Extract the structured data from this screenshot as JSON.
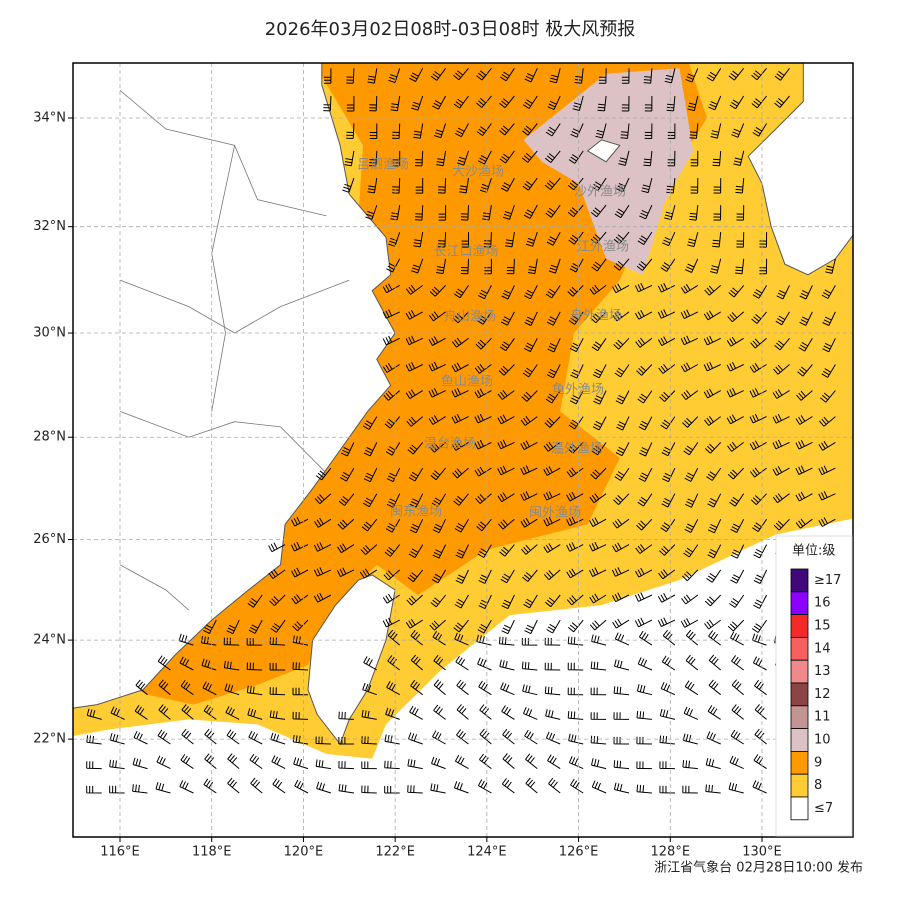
{
  "title": "2026年03月02日08时-03日08时 极大风预报",
  "map": {
    "lon_ticks": [
      {
        "value": 116,
        "label": "116°E"
      },
      {
        "value": 118,
        "label": "118°E"
      },
      {
        "value": 120,
        "label": "120°E"
      },
      {
        "value": 122,
        "label": "122°E"
      },
      {
        "value": 124,
        "label": "124°E"
      },
      {
        "value": 126,
        "label": "126°E"
      },
      {
        "value": 128,
        "label": "128°E"
      },
      {
        "value": 130,
        "label": "130°E"
      }
    ],
    "lat_ticks": [
      {
        "value": 22,
        "label": "22°N"
      },
      {
        "value": 24,
        "label": "24°N"
      },
      {
        "value": 26,
        "label": "26°N"
      },
      {
        "value": 28,
        "label": "28°N"
      },
      {
        "value": 30,
        "label": "30°N"
      },
      {
        "value": 32,
        "label": "32°N"
      },
      {
        "value": 34,
        "label": "34°N"
      }
    ],
    "fishing_grounds": [
      "吕泗渔场",
      "大沙渔场",
      "沙外渔场",
      "长江口渔场",
      "江外渔场",
      "舟山渔场",
      "舟外渔场",
      "鱼山渔场",
      "鱼外渔场",
      "温台渔场",
      "温外渔场",
      "闽东渔场",
      "闽外渔场"
    ]
  },
  "legend": {
    "title": "单位:级",
    "items": [
      {
        "label": "≥17",
        "color": "#40087a"
      },
      {
        "label": "16",
        "color": "#8c00ff"
      },
      {
        "label": "15",
        "color": "#f42a2a"
      },
      {
        "label": "14",
        "color": "#f86060"
      },
      {
        "label": "13",
        "color": "#f08a8a"
      },
      {
        "label": "12",
        "color": "#8c4444"
      },
      {
        "label": "11",
        "color": "#c49494"
      },
      {
        "label": "10",
        "color": "#dcc2c4"
      },
      {
        "label": "9",
        "color": "#ff9900"
      },
      {
        "label": "8",
        "color": "#ffcc33"
      },
      {
        "label": "≤7",
        "color": "#ffffff"
      }
    ]
  },
  "footer": "浙江省气象台 02月28日10:00 发布"
}
